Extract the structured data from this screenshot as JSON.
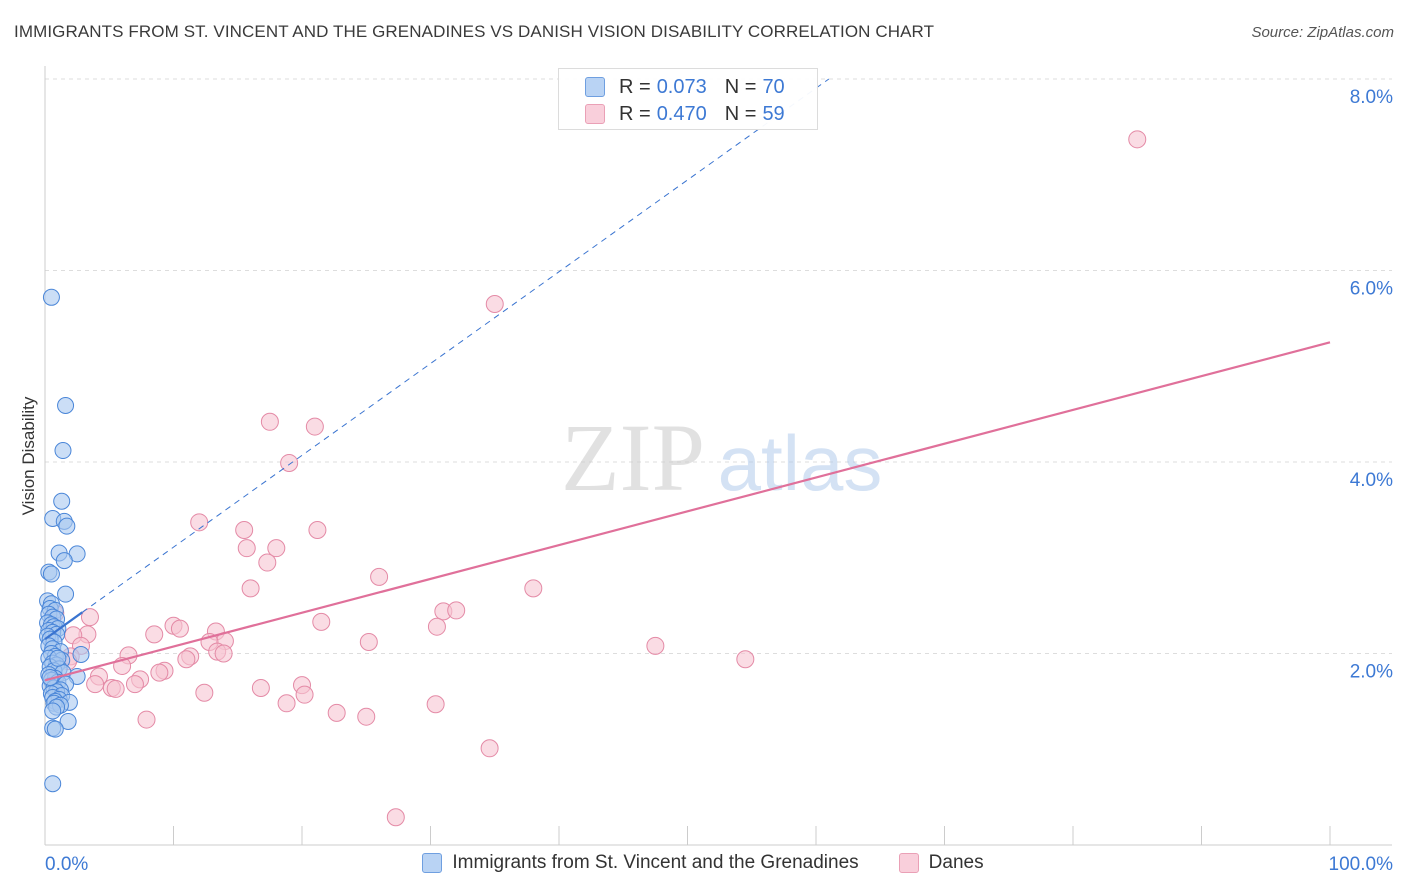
{
  "title": "IMMIGRANTS FROM ST. VINCENT AND THE GRENADINES VS DANISH VISION DISABILITY CORRELATION CHART",
  "source": "Source: ZipAtlas.com",
  "watermark": {
    "part1": "ZIP",
    "part2": "atlas"
  },
  "legend_box": {
    "rows": [
      {
        "r_label": "R =",
        "r_value": "0.073",
        "n_label": "N =",
        "n_value": "70"
      },
      {
        "r_label": "R =",
        "r_value": "0.470",
        "n_label": "N =",
        "n_value": "59"
      }
    ]
  },
  "colors": {
    "blue_fill": "#a9c8f0",
    "blue_stroke": "#4a86d8",
    "blue_line": "#3a74d0",
    "pink_fill": "#f6c4d2",
    "pink_stroke": "#e48aa6",
    "pink_line": "#e0709a",
    "tick_label": "#3d79d4"
  },
  "chart_data": {
    "type": "scatter",
    "title": "IMMIGRANTS FROM ST. VINCENT AND THE GRENADINES VS DANISH VISION DISABILITY CORRELATION CHART",
    "xlabel": "",
    "ylabel": "Vision Disability",
    "xlim": [
      0,
      100
    ],
    "ylim": [
      0,
      8.0
    ],
    "x_tick_labels": [
      "0.0%",
      "100.0%"
    ],
    "y_ticks": [
      2.0,
      4.0,
      6.0,
      8.0
    ],
    "y_tick_labels": [
      "2.0%",
      "4.0%",
      "6.0%",
      "8.0%"
    ],
    "legend_position": "bottom-center",
    "series": [
      {
        "name": "Immigrants from St. Vincent and the Grenadines",
        "color": "#a9c8f0",
        "r": 0.073,
        "n": 70,
        "points": [
          [
            0.5,
            5.72
          ],
          [
            1.6,
            4.59
          ],
          [
            1.4,
            4.12
          ],
          [
            1.3,
            3.59
          ],
          [
            0.6,
            3.41
          ],
          [
            1.5,
            3.38
          ],
          [
            1.7,
            3.33
          ],
          [
            1.1,
            3.05
          ],
          [
            2.5,
            3.04
          ],
          [
            1.5,
            2.97
          ],
          [
            0.3,
            2.85
          ],
          [
            0.5,
            2.83
          ],
          [
            1.6,
            2.62
          ],
          [
            0.2,
            2.55
          ],
          [
            0.5,
            2.52
          ],
          [
            0.4,
            2.47
          ],
          [
            0.8,
            2.45
          ],
          [
            0.3,
            2.41
          ],
          [
            0.6,
            2.38
          ],
          [
            0.9,
            2.36
          ],
          [
            0.2,
            2.32
          ],
          [
            0.5,
            2.3
          ],
          [
            0.7,
            2.28
          ],
          [
            1.0,
            2.26
          ],
          [
            0.3,
            2.24
          ],
          [
            0.6,
            2.22
          ],
          [
            0.9,
            2.2
          ],
          [
            0.2,
            2.18
          ],
          [
            0.4,
            2.15
          ],
          [
            0.7,
            2.12
          ],
          [
            0.3,
            2.08
          ],
          [
            0.6,
            2.05
          ],
          [
            1.2,
            2.02
          ],
          [
            0.5,
            2.0
          ],
          [
            2.8,
            1.99
          ],
          [
            0.8,
            1.97
          ],
          [
            0.3,
            1.95
          ],
          [
            1.3,
            1.93
          ],
          [
            0.6,
            1.9
          ],
          [
            0.9,
            1.88
          ],
          [
            0.4,
            1.86
          ],
          [
            1.1,
            1.84
          ],
          [
            0.7,
            1.82
          ],
          [
            1.4,
            1.8
          ],
          [
            0.3,
            1.78
          ],
          [
            2.5,
            1.76
          ],
          [
            0.8,
            1.74
          ],
          [
            0.5,
            1.72
          ],
          [
            1.0,
            1.7
          ],
          [
            1.6,
            1.68
          ],
          [
            0.4,
            1.66
          ],
          [
            0.7,
            1.64
          ],
          [
            1.2,
            1.62
          ],
          [
            0.9,
            1.6
          ],
          [
            0.5,
            1.58
          ],
          [
            1.3,
            1.56
          ],
          [
            0.6,
            1.54
          ],
          [
            1.1,
            1.52
          ],
          [
            0.8,
            1.5
          ],
          [
            1.9,
            1.49
          ],
          [
            0.7,
            1.48
          ],
          [
            1.2,
            1.46
          ],
          [
            0.9,
            1.44
          ],
          [
            0.6,
            1.4
          ],
          [
            1.8,
            1.29
          ],
          [
            0.6,
            1.22
          ],
          [
            0.8,
            1.21
          ],
          [
            0.6,
            0.64
          ],
          [
            0.4,
            1.75
          ],
          [
            1.0,
            1.95
          ]
        ]
      },
      {
        "name": "Danes",
        "color": "#f6c4d2",
        "r": 0.47,
        "n": 59,
        "points": [
          [
            85.0,
            7.37
          ],
          [
            35.0,
            5.65
          ],
          [
            17.5,
            4.42
          ],
          [
            21.0,
            4.37
          ],
          [
            19.0,
            3.99
          ],
          [
            12.0,
            3.37
          ],
          [
            15.5,
            3.29
          ],
          [
            21.2,
            3.29
          ],
          [
            15.7,
            3.1
          ],
          [
            18.0,
            3.1
          ],
          [
            17.3,
            2.95
          ],
          [
            26.0,
            2.8
          ],
          [
            16.0,
            2.68
          ],
          [
            38.0,
            2.68
          ],
          [
            31.0,
            2.44
          ],
          [
            32.0,
            2.45
          ],
          [
            0.8,
            2.42
          ],
          [
            3.5,
            2.38
          ],
          [
            21.5,
            2.33
          ],
          [
            30.5,
            2.28
          ],
          [
            10.0,
            2.29
          ],
          [
            10.5,
            2.26
          ],
          [
            13.3,
            2.23
          ],
          [
            8.5,
            2.2
          ],
          [
            3.3,
            2.2
          ],
          [
            2.2,
            2.19
          ],
          [
            14.0,
            2.13
          ],
          [
            12.8,
            2.12
          ],
          [
            25.2,
            2.12
          ],
          [
            47.5,
            2.08
          ],
          [
            2.8,
            2.08
          ],
          [
            13.4,
            2.02
          ],
          [
            13.9,
            2.0
          ],
          [
            6.5,
            1.98
          ],
          [
            11.3,
            1.97
          ],
          [
            2.0,
            1.97
          ],
          [
            11.0,
            1.94
          ],
          [
            54.5,
            1.94
          ],
          [
            1.8,
            1.92
          ],
          [
            6.0,
            1.87
          ],
          [
            9.3,
            1.82
          ],
          [
            8.9,
            1.8
          ],
          [
            4.2,
            1.76
          ],
          [
            7.4,
            1.73
          ],
          [
            3.9,
            1.68
          ],
          [
            7.0,
            1.68
          ],
          [
            5.2,
            1.64
          ],
          [
            5.5,
            1.63
          ],
          [
            16.8,
            1.64
          ],
          [
            20.0,
            1.67
          ],
          [
            12.4,
            1.59
          ],
          [
            20.2,
            1.57
          ],
          [
            18.8,
            1.48
          ],
          [
            30.4,
            1.47
          ],
          [
            22.7,
            1.38
          ],
          [
            25.0,
            1.34
          ],
          [
            7.9,
            1.31
          ],
          [
            34.6,
            1.01
          ],
          [
            27.3,
            0.29
          ]
        ]
      }
    ],
    "trend_lines": [
      {
        "series": "Immigrants from St. Vincent and the Grenadines",
        "style": "solid",
        "from": [
          0.0,
          2.15
        ],
        "to": [
          2.9,
          2.43
        ]
      },
      {
        "series": "Immigrants from St. Vincent and the Grenadines",
        "style": "dashed",
        "from": [
          2.9,
          2.43
        ],
        "to": [
          61.0,
          8.0
        ]
      },
      {
        "series": "Danes",
        "style": "solid",
        "from": [
          0.0,
          1.72
        ],
        "to": [
          100.0,
          5.25
        ]
      }
    ]
  }
}
